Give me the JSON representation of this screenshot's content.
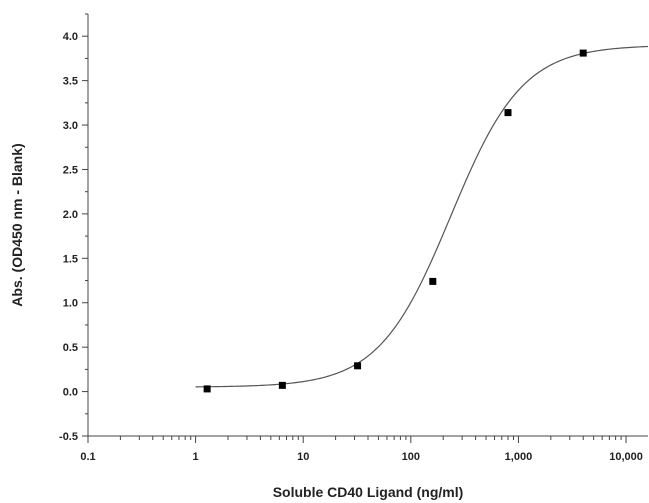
{
  "chart_data": {
    "type": "scatter",
    "title": "",
    "xlabel": "Soluble CD40 Ligand (ng/ml)",
    "ylabel": "Abs. (OD450 nm - Blank)",
    "x_scale": "log",
    "xlim": [
      0.1,
      16000
    ],
    "ylim": [
      -0.5,
      4.25
    ],
    "x_ticks": [
      {
        "value": 0.1,
        "label": "0.1"
      },
      {
        "value": 1,
        "label": "1"
      },
      {
        "value": 10,
        "label": "10"
      },
      {
        "value": 100,
        "label": "100"
      },
      {
        "value": 1000,
        "label": "1,000"
      },
      {
        "value": 10000,
        "label": "10,000"
      }
    ],
    "y_ticks": [
      {
        "value": -0.5,
        "label": "-0.5"
      },
      {
        "value": 0.0,
        "label": "0.0"
      },
      {
        "value": 0.5,
        "label": "0.5"
      },
      {
        "value": 1.0,
        "label": "1.0"
      },
      {
        "value": 1.5,
        "label": "1.5"
      },
      {
        "value": 2.0,
        "label": "2.0"
      },
      {
        "value": 2.5,
        "label": "2.5"
      },
      {
        "value": 3.0,
        "label": "3.0"
      },
      {
        "value": 3.5,
        "label": "3.5"
      },
      {
        "value": 4.0,
        "label": "4.0"
      }
    ],
    "grid": false,
    "legend": "none",
    "points": [
      {
        "x": 1.28,
        "y": 0.03
      },
      {
        "x": 6.4,
        "y": 0.07
      },
      {
        "x": 32,
        "y": 0.29
      },
      {
        "x": 160,
        "y": 1.24
      },
      {
        "x": 800,
        "y": 3.14
      },
      {
        "x": 4000,
        "y": 3.81
      }
    ],
    "fit_curve": {
      "model": "4-parameter logistic",
      "bottom": 0.05,
      "top": 3.9,
      "ec50": 235,
      "hill": 1.3
    },
    "marker_color": "#000000",
    "line_color": "#555555"
  }
}
